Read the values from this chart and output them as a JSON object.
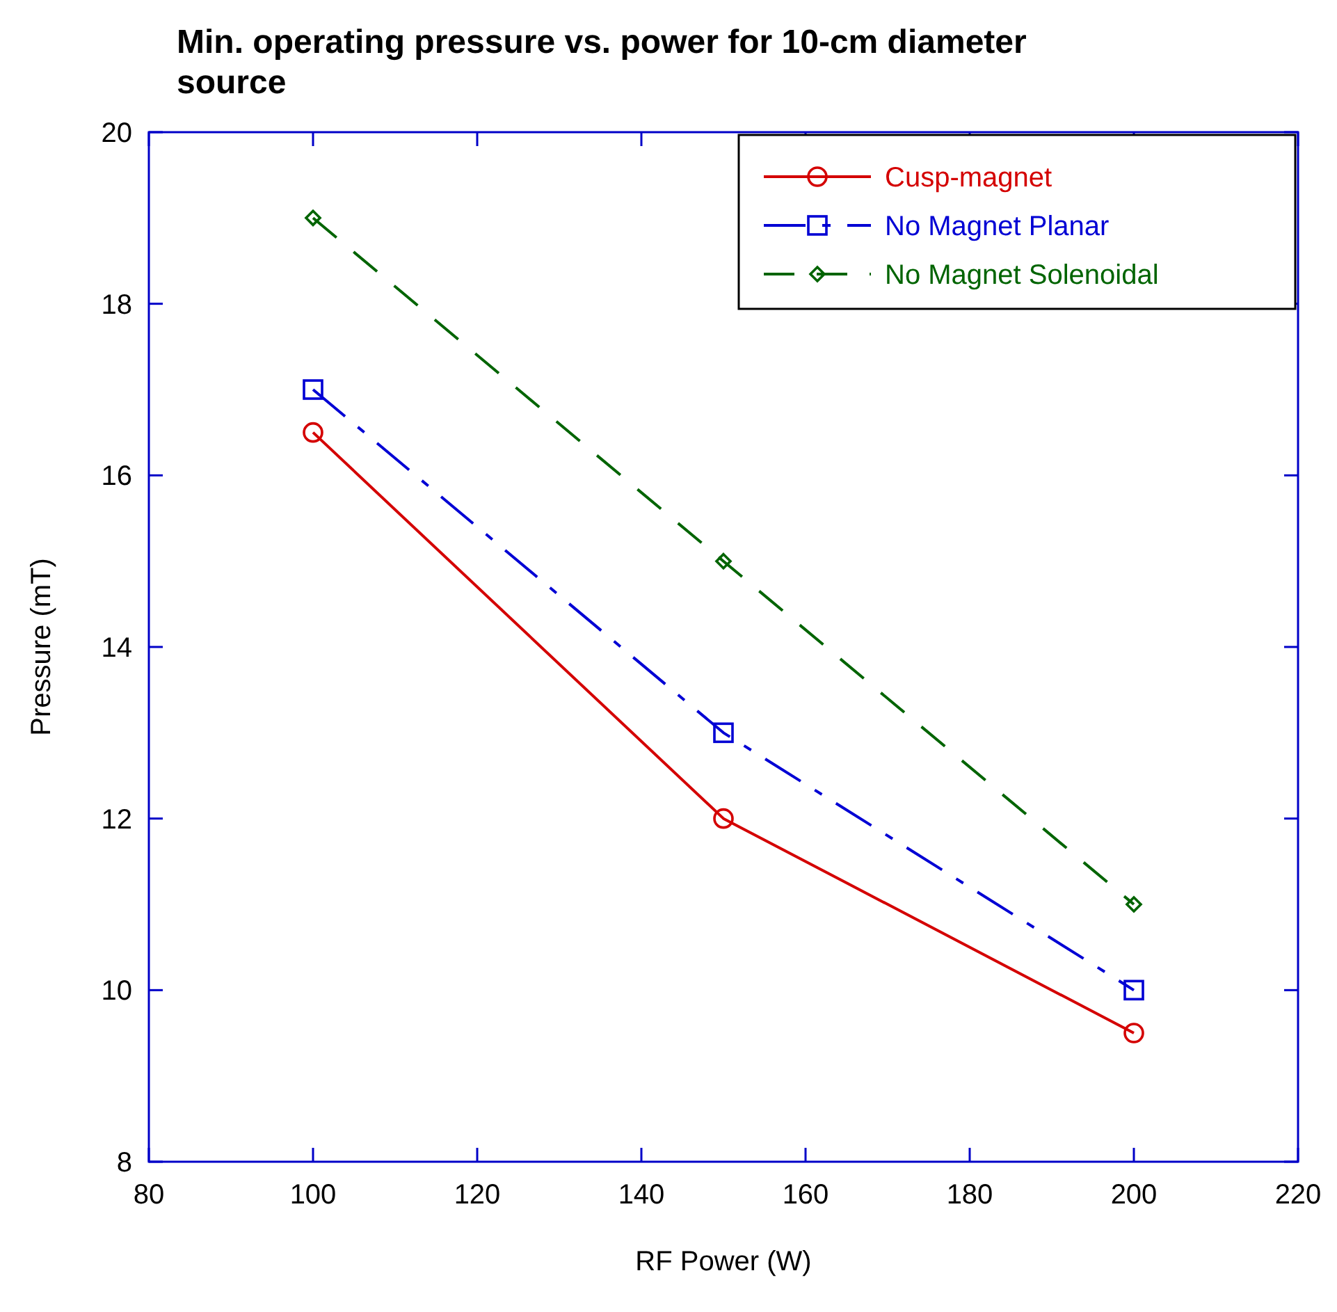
{
  "chart_data": {
    "type": "line",
    "title": "Min. operating pressure vs. power for 10-cm diameter source",
    "xlabel": "RF Power (W)",
    "ylabel": "Pressure (mT)",
    "x": [
      100,
      150,
      200
    ],
    "series": [
      {
        "name": "Cusp-magnet",
        "color": "#d40000",
        "values": [
          16.5,
          12,
          9.5
        ],
        "marker": "circle",
        "line_style": "solid"
      },
      {
        "name": "No Magnet Planar",
        "color": "#0000d4",
        "values": [
          17,
          13,
          10
        ],
        "marker": "square",
        "line_style": "dashdot"
      },
      {
        "name": "No Magnet Solenoidal",
        "color": "#006400",
        "values": [
          19,
          15,
          11
        ],
        "marker": "diamond",
        "line_style": "dashed"
      }
    ],
    "xlim": [
      80,
      220
    ],
    "xticks": [
      80,
      100,
      120,
      140,
      160,
      180,
      200,
      220
    ],
    "ylim": [
      8,
      20
    ],
    "yticks": [
      8,
      10,
      12,
      14,
      16,
      18,
      20
    ],
    "grid": false,
    "legend": "top right"
  }
}
